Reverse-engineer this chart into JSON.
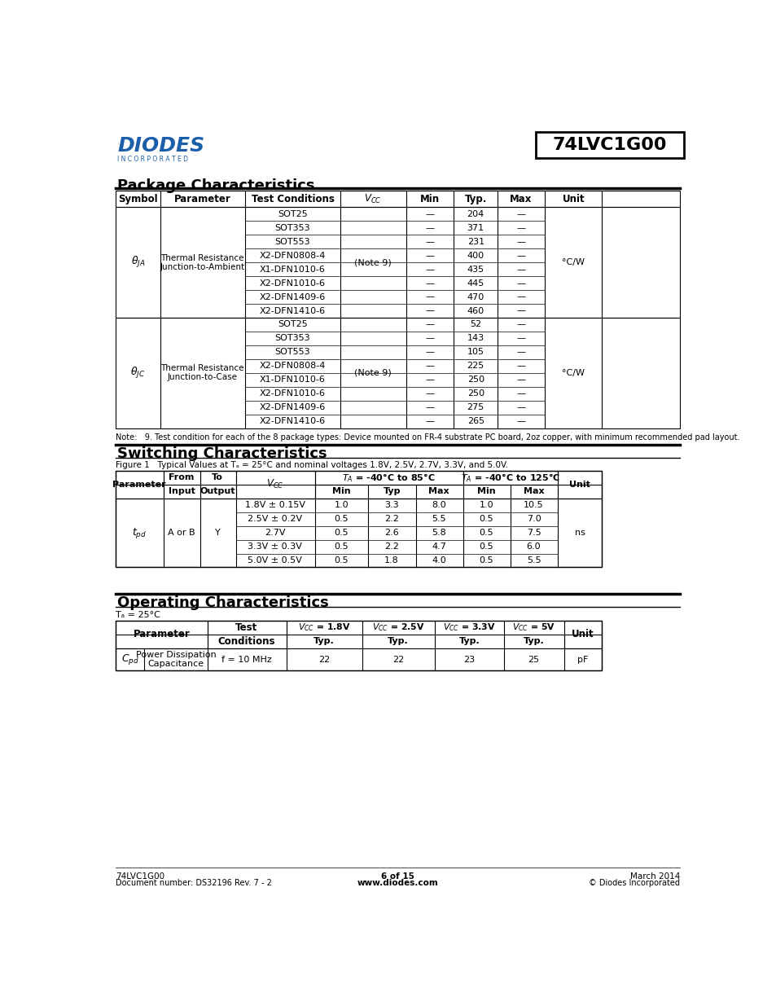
{
  "title_part": "74LVC1G00",
  "bg_color": "#ffffff",
  "section1_title": "Package Characteristics",
  "section2_title": "Switching Characteristics",
  "section3_title": "Operating Characteristics",
  "pkg_ja_rows": [
    [
      "SOT25",
      "—",
      "204",
      "—"
    ],
    [
      "SOT353",
      "—",
      "371",
      "—"
    ],
    [
      "SOT553",
      "—",
      "231",
      "—"
    ],
    [
      "X2-DFN0808-4",
      "—",
      "400",
      "—"
    ],
    [
      "X1-DFN1010-6",
      "—",
      "435",
      "—"
    ],
    [
      "X2-DFN1010-6",
      "—",
      "445",
      "—"
    ],
    [
      "X2-DFN1409-6",
      "—",
      "470",
      "—"
    ],
    [
      "X2-DFN1410-6",
      "—",
      "460",
      "—"
    ]
  ],
  "pkg_jc_rows": [
    [
      "SOT25",
      "—",
      "52",
      "—"
    ],
    [
      "SOT353",
      "—",
      "143",
      "—"
    ],
    [
      "SOT553",
      "—",
      "105",
      "—"
    ],
    [
      "X2-DFN0808-4",
      "—",
      "225",
      "—"
    ],
    [
      "X1-DFN1010-6",
      "—",
      "250",
      "—"
    ],
    [
      "X2-DFN1010-6",
      "—",
      "250",
      "—"
    ],
    [
      "X2-DFN1409-6",
      "—",
      "275",
      "—"
    ],
    [
      "X2-DFN1410-6",
      "—",
      "265",
      "—"
    ]
  ],
  "pkg_note": "Note:   9. Test condition for each of the 8 package types: Device mounted on FR-4 substrate PC board, 2oz copper, with minimum recommended pad layout.",
  "sw_figure_caption": "Figure 1   Typical Values at Tₐ = 25°C and nominal voltages 1.8V, 2.5V, 2.7V, 3.3V, and 5.0V.",
  "sw_vcc_vals": [
    "1.8V ± 0.15V",
    "2.5V ± 0.2V",
    "2.7V",
    "3.3V ± 0.3V",
    "5.0V ± 0.5V"
  ],
  "sw_rows": [
    [
      "1.8V ± 0.15V",
      "1.0",
      "3.3",
      "8.0",
      "1.0",
      "10.5"
    ],
    [
      "2.5V ± 0.2V",
      "0.5",
      "2.2",
      "5.5",
      "0.5",
      "7.0"
    ],
    [
      "2.7V",
      "0.5",
      "2.6",
      "5.8",
      "0.5",
      "7.5"
    ],
    [
      "3.3V ± 0.3V",
      "0.5",
      "2.2",
      "4.7",
      "0.5",
      "6.0"
    ],
    [
      "5.0V ± 0.5V",
      "0.5",
      "1.8",
      "4.0",
      "0.5",
      "5.5"
    ]
  ],
  "op_ta": "Tₐ = 25°C",
  "op_vcc_labels": [
    "$V_{CC}$ = 1.8V",
    "$V_{CC}$ = 2.5V",
    "$V_{CC}$ = 3.3V",
    "$V_{CC}$ = 5V"
  ],
  "op_vals": [
    "22",
    "22",
    "23",
    "25"
  ],
  "footer_left1": "74LVC1G00",
  "footer_left2": "Document number: DS32196 Rev. 7 - 2",
  "footer_center1": "6 of 15",
  "footer_center2": "www.diodes.com",
  "footer_right1": "March 2014",
  "footer_right2": "© Diodes Incorporated"
}
